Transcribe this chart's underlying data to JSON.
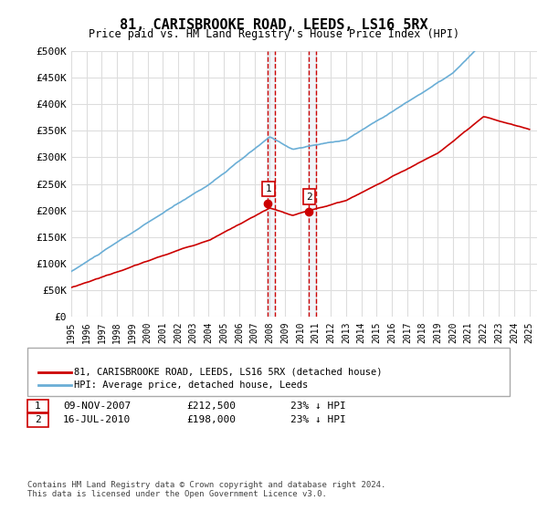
{
  "title": "81, CARISBROOKE ROAD, LEEDS, LS16 5RX",
  "subtitle": "Price paid vs. HM Land Registry's House Price Index (HPI)",
  "ylabel_ticks": [
    "£0",
    "£50K",
    "£100K",
    "£150K",
    "£200K",
    "£250K",
    "£300K",
    "£350K",
    "£400K",
    "£450K",
    "£500K"
  ],
  "ytick_values": [
    0,
    50000,
    100000,
    150000,
    200000,
    250000,
    300000,
    350000,
    400000,
    450000,
    500000
  ],
  "ylim": [
    0,
    500000
  ],
  "xlim_start": 1995.0,
  "xlim_end": 2025.5,
  "hpi_color": "#6aaed6",
  "price_color": "#cc0000",
  "sale1_date": 2007.86,
  "sale1_price": 212500,
  "sale2_date": 2010.54,
  "sale2_price": 198000,
  "legend_label1": "81, CARISBROOKE ROAD, LEEDS, LS16 5RX (detached house)",
  "legend_label2": "HPI: Average price, detached house, Leeds",
  "table_row1": [
    "1",
    "09-NOV-2007",
    "£212,500",
    "23% ↓ HPI"
  ],
  "table_row2": [
    "2",
    "16-JUL-2010",
    "£198,000",
    "23% ↓ HPI"
  ],
  "footnote": "Contains HM Land Registry data © Crown copyright and database right 2024.\nThis data is licensed under the Open Government Licence v3.0.",
  "bg_color": "#ffffff",
  "plot_bg_color": "#ffffff",
  "grid_color": "#dddddd",
  "shade_color": "#c8d8e8"
}
